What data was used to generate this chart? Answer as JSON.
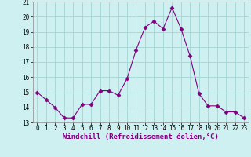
{
  "x": [
    0,
    1,
    2,
    3,
    4,
    5,
    6,
    7,
    8,
    9,
    10,
    11,
    12,
    13,
    14,
    15,
    16,
    17,
    18,
    19,
    20,
    21,
    22,
    23
  ],
  "y": [
    15.0,
    14.5,
    14.0,
    13.3,
    13.3,
    14.2,
    14.2,
    15.1,
    15.1,
    14.8,
    15.9,
    17.8,
    19.3,
    19.7,
    19.2,
    20.6,
    19.2,
    17.4,
    14.9,
    14.1,
    14.1,
    13.7,
    13.7,
    13.3
  ],
  "line_color": "#800080",
  "marker": "D",
  "marker_size": 2.5,
  "bg_color": "#cff0f0",
  "grid_color": "#a8d8d8",
  "xlabel": "Windchill (Refroidissement éolien,°C)",
  "xlabel_fontsize": 6.5,
  "tick_fontsize": 5.5,
  "ylim": [
    13,
    21
  ],
  "xlim": [
    -0.5,
    23.5
  ],
  "yticks": [
    13,
    14,
    15,
    16,
    17,
    18,
    19,
    20,
    21
  ],
  "xticks": [
    0,
    1,
    2,
    3,
    4,
    5,
    6,
    7,
    8,
    9,
    10,
    11,
    12,
    13,
    14,
    15,
    16,
    17,
    18,
    19,
    20,
    21,
    22,
    23
  ],
  "xticklabels": [
    "0",
    "1",
    "2",
    "3",
    "4",
    "5",
    "6",
    "7",
    "8",
    "9",
    "10",
    "11",
    "12",
    "13",
    "14",
    "15",
    "16",
    "17",
    "18",
    "19",
    "20",
    "21",
    "22",
    "23"
  ]
}
